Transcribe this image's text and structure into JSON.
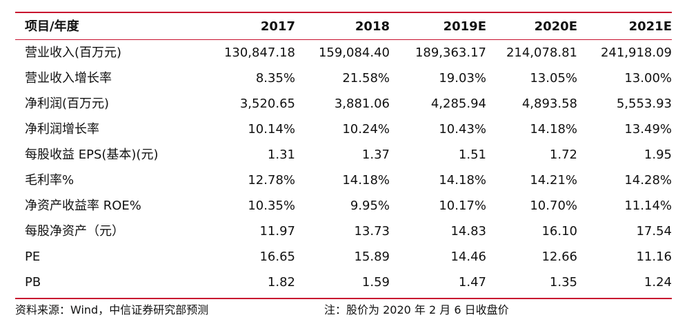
{
  "table": {
    "header": [
      "项目/年度",
      "2017",
      "2018",
      "2019E",
      "2020E",
      "2021E"
    ],
    "rows": [
      {
        "label": "营业收入(百万元)",
        "values": [
          "130,847.18",
          "159,084.40",
          "189,363.17",
          "214,078.81",
          "241,918.09"
        ]
      },
      {
        "label": "营业收入增长率",
        "values": [
          "8.35%",
          "21.58%",
          "19.03%",
          "13.05%",
          "13.00%"
        ]
      },
      {
        "label": "净利润(百万元)",
        "values": [
          "3,520.65",
          "3,881.06",
          "4,285.94",
          "4,893.58",
          "5,553.93"
        ]
      },
      {
        "label": "净利润增长率",
        "values": [
          "10.14%",
          "10.24%",
          "10.43%",
          "14.18%",
          "13.49%"
        ]
      },
      {
        "label": "每股收益 EPS(基本)(元)",
        "values": [
          "1.31",
          "1.37",
          "1.51",
          "1.72",
          "1.95"
        ]
      },
      {
        "label": "毛利率%",
        "values": [
          "12.78%",
          "14.18%",
          "14.18%",
          "14.21%",
          "14.28%"
        ]
      },
      {
        "label": "净资产收益率 ROE%",
        "values": [
          "10.35%",
          "9.95%",
          "10.17%",
          "10.70%",
          "11.14%"
        ]
      },
      {
        "label": "每股净资产（元）",
        "values": [
          "11.97",
          "13.73",
          "14.83",
          "16.10",
          "17.54"
        ]
      },
      {
        "label": "PE",
        "values": [
          "16.65",
          "15.89",
          "14.46",
          "12.66",
          "11.16"
        ]
      },
      {
        "label": "PB",
        "values": [
          "1.82",
          "1.59",
          "1.47",
          "1.35",
          "1.24"
        ]
      }
    ]
  },
  "footer": {
    "source": "资料来源：Wind，中信证券研究部预测",
    "note": "注：股价为 2020 年 2 月 6 日收盘价"
  },
  "colors": {
    "rule": "#c8102e",
    "text": "#111111"
  }
}
